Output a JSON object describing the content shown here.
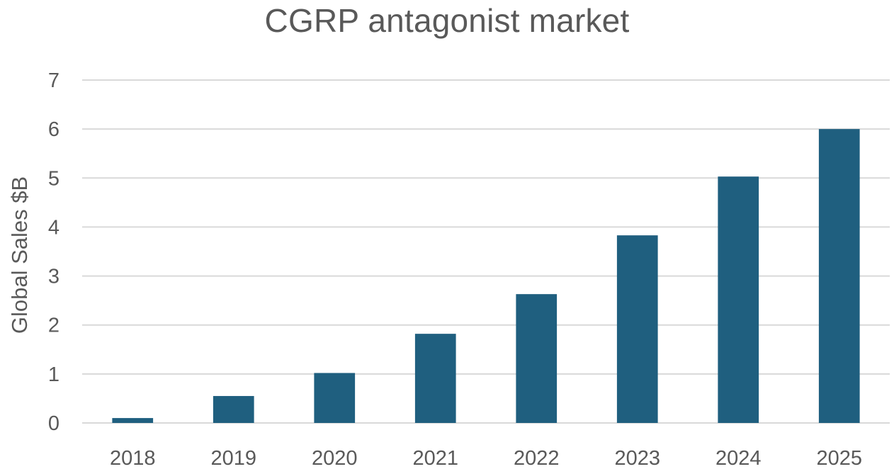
{
  "chart_data": {
    "type": "bar",
    "title": "CGRP antagonist market",
    "xlabel": "",
    "ylabel": "Global Sales $B",
    "categories": [
      "2018",
      "2019",
      "2020",
      "2021",
      "2022",
      "2023",
      "2024",
      "2025"
    ],
    "values": [
      0.1,
      0.55,
      1.02,
      1.82,
      2.63,
      3.83,
      5.03,
      6.0
    ],
    "ylim": [
      0,
      7
    ],
    "yticks": [
      0,
      1,
      2,
      3,
      4,
      5,
      6,
      7
    ],
    "grid": true,
    "legend": "none",
    "bar_color": "#1f5f7f",
    "grid_color": "#d9d9d9",
    "text_color": "#595959"
  }
}
